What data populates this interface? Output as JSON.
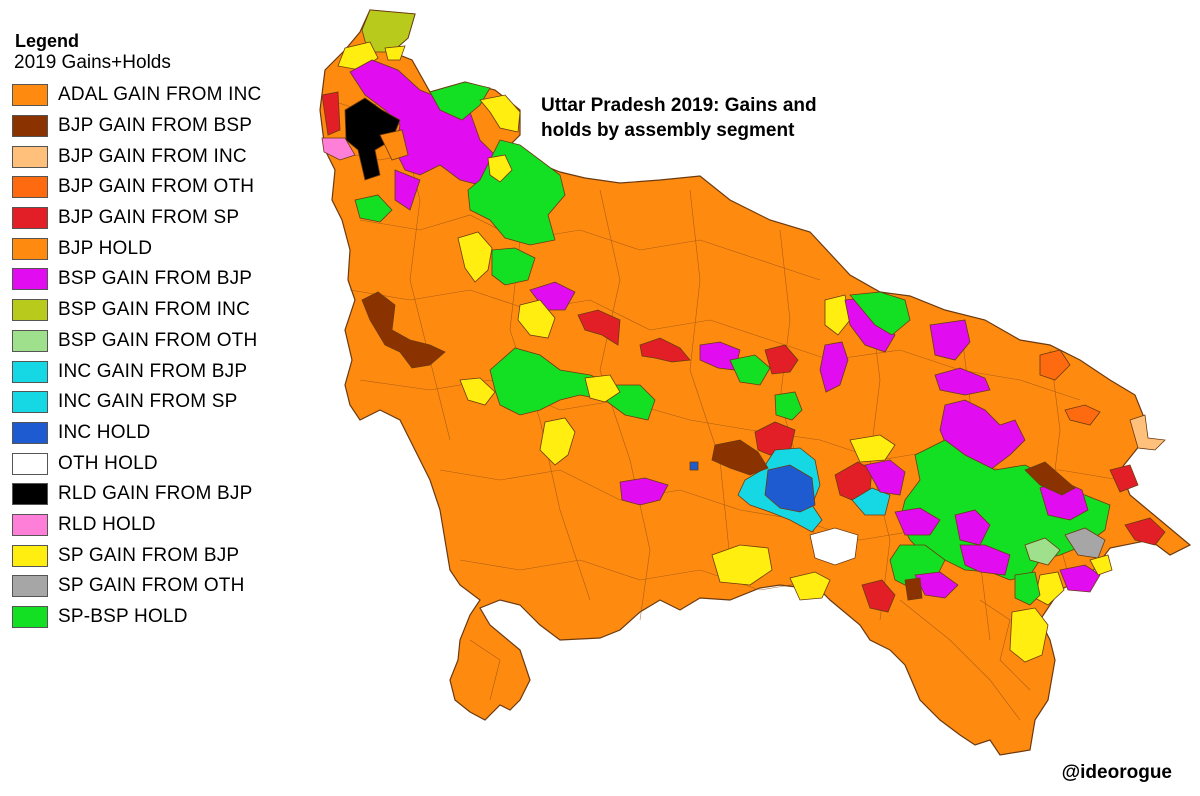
{
  "legend": {
    "heading": "Legend",
    "subheading": "2019 Gains+Holds",
    "items": [
      {
        "label": "ADAL GAIN FROM INC",
        "color": "#fe8a10"
      },
      {
        "label": "BJP GAIN FROM BSP",
        "color": "#8b3300"
      },
      {
        "label": "BJP GAIN FROM INC",
        "color": "#fec07a"
      },
      {
        "label": "BJP GAIN FROM OTH",
        "color": "#fe6a10"
      },
      {
        "label": "BJP GAIN FROM SP",
        "color": "#e21f26"
      },
      {
        "label": "BJP HOLD",
        "color": "#fe8a10"
      },
      {
        "label": "BSP GAIN FROM BJP",
        "color": "#e10cf0"
      },
      {
        "label": "BSP GAIN FROM INC",
        "color": "#b8cb1c"
      },
      {
        "label": "BSP GAIN FROM OTH",
        "color": "#9ee08c"
      },
      {
        "label": "INC GAIN FROM BJP",
        "color": "#16d8e4"
      },
      {
        "label": "INC GAIN FROM SP",
        "color": "#16d8e4"
      },
      {
        "label": "INC HOLD",
        "color": "#1f5bd0"
      },
      {
        "label": "OTH HOLD",
        "color": "#ffffff"
      },
      {
        "label": "RLD GAIN FROM BJP",
        "color": "#000000"
      },
      {
        "label": "RLD HOLD",
        "color": "#fe7fd8"
      },
      {
        "label": "SP GAIN FROM BJP",
        "color": "#ffee10"
      },
      {
        "label": "SP GAIN FROM OTH",
        "color": "#a6a6a6"
      },
      {
        "label": "SP-BSP HOLD",
        "color": "#14e023"
      }
    ]
  },
  "map": {
    "title_line1": "Uttar Pradesh 2019: Gains and",
    "title_line2": "holds by assembly segment",
    "base_color": "#fe8a10",
    "border_color": "#6b3a10"
  },
  "credit": "@ideorogue"
}
